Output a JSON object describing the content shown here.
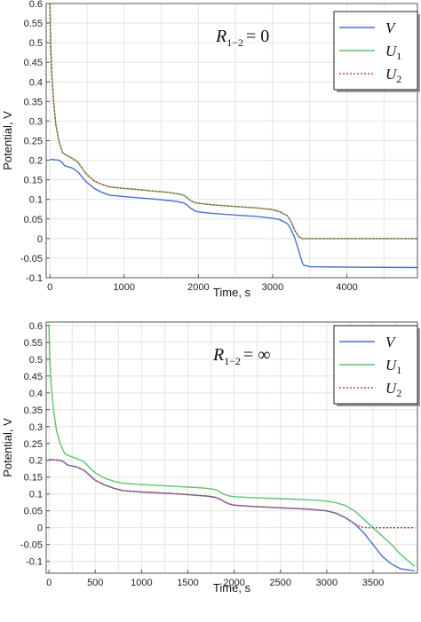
{
  "chart_data": [
    {
      "type": "line",
      "annotation": {
        "symbol": "R",
        "subscript": "1−2",
        "value": "= 0"
      },
      "xlabel": "Time, s",
      "ylabel": "Potential, V",
      "xlim": [
        -50,
        4950
      ],
      "ylim": [
        -0.1,
        0.6
      ],
      "xticks": [
        0,
        1000,
        2000,
        3000,
        4000
      ],
      "yticks": [
        -0.1,
        -0.05,
        0,
        0.05,
        0.1,
        0.15,
        0.2,
        0.25,
        0.3,
        0.35,
        0.4,
        0.45,
        0.5,
        0.55,
        0.6
      ],
      "ytick_labels": [
        "-0.1",
        "-0.05",
        "0",
        "0.05",
        "0.1",
        "0.15",
        "0.2",
        "0.25",
        "0.3",
        "0.35",
        "0.4",
        "0.45",
        "0.5",
        "0.55",
        "0.6"
      ],
      "grid": true,
      "legend_position": "top-right",
      "series": [
        {
          "name": "V",
          "sub": "",
          "color": "#4a6fd6",
          "dash": "solid",
          "x": [
            0,
            20,
            60,
            120,
            160,
            200,
            300,
            380,
            450,
            500,
            600,
            700,
            800,
            1000,
            1200,
            1400,
            1600,
            1700,
            1800,
            1850,
            1900,
            1950,
            2000,
            2200,
            2500,
            2800,
            3000,
            3100,
            3200,
            3250,
            3300,
            3350,
            3400,
            3420,
            3500,
            4000,
            4950
          ],
          "y": [
            0.202,
            0.202,
            0.201,
            0.2,
            0.195,
            0.186,
            0.18,
            0.17,
            0.153,
            0.143,
            0.128,
            0.118,
            0.111,
            0.107,
            0.104,
            0.101,
            0.097,
            0.095,
            0.091,
            0.085,
            0.077,
            0.071,
            0.068,
            0.064,
            0.06,
            0.056,
            0.052,
            0.048,
            0.038,
            0.022,
            0.0,
            -0.03,
            -0.062,
            -0.068,
            -0.072,
            -0.073,
            -0.074
          ]
        },
        {
          "name": "U",
          "sub": "1",
          "color": "#5cc46e",
          "dash": "solid",
          "x": [
            0,
            10,
            25,
            50,
            80,
            120,
            170,
            200,
            300,
            380,
            450,
            500,
            600,
            700,
            800,
            1000,
            1200,
            1400,
            1600,
            1700,
            1800,
            1850,
            1900,
            1950,
            2000,
            2200,
            2500,
            2800,
            3000,
            3100,
            3200,
            3250,
            3300,
            3350,
            3400,
            3420,
            3500,
            4000,
            4950
          ],
          "y": [
            0.6,
            0.5,
            0.42,
            0.35,
            0.29,
            0.25,
            0.22,
            0.215,
            0.205,
            0.195,
            0.175,
            0.163,
            0.147,
            0.138,
            0.132,
            0.128,
            0.125,
            0.121,
            0.118,
            0.115,
            0.111,
            0.104,
            0.096,
            0.092,
            0.09,
            0.086,
            0.082,
            0.078,
            0.074,
            0.068,
            0.058,
            0.042,
            0.02,
            0.005,
            0.0,
            0.0,
            0.0,
            0.0,
            0.0
          ]
        },
        {
          "name": "U",
          "sub": "2",
          "color": "#c0463c",
          "dash": "dotted",
          "x": [
            0,
            10,
            25,
            50,
            80,
            120,
            170,
            200,
            300,
            380,
            450,
            500,
            600,
            700,
            800,
            1000,
            1200,
            1400,
            1600,
            1700,
            1800,
            1850,
            1900,
            1950,
            2000,
            2200,
            2500,
            2800,
            3000,
            3100,
            3200,
            3250,
            3300,
            3350,
            3400,
            3420,
            3500,
            4000,
            4950
          ],
          "y": [
            0.6,
            0.5,
            0.42,
            0.35,
            0.29,
            0.25,
            0.22,
            0.215,
            0.205,
            0.195,
            0.175,
            0.163,
            0.147,
            0.138,
            0.132,
            0.128,
            0.125,
            0.121,
            0.118,
            0.115,
            0.111,
            0.104,
            0.096,
            0.092,
            0.09,
            0.086,
            0.082,
            0.078,
            0.074,
            0.068,
            0.058,
            0.042,
            0.02,
            0.005,
            0.0,
            0.0,
            0.0,
            0.0,
            0.0
          ]
        }
      ]
    },
    {
      "type": "line",
      "annotation": {
        "symbol": "R",
        "subscript": "1−2",
        "value": "= ∞"
      },
      "xlabel": "Time, s",
      "ylabel": "Potential, V",
      "xlim": [
        -30,
        3980
      ],
      "ylim": [
        -0.135,
        0.61
      ],
      "xticks": [
        0,
        500,
        1000,
        1500,
        2000,
        2500,
        3000,
        3500
      ],
      "yticks": [
        -0.1,
        -0.05,
        0,
        0.05,
        0.1,
        0.15,
        0.2,
        0.25,
        0.3,
        0.35,
        0.4,
        0.45,
        0.5,
        0.55,
        0.6
      ],
      "ytick_labels": [
        "-0.1",
        "-0.05",
        "0",
        "0.05",
        "0.1",
        "0.15",
        "0.2",
        "0.25",
        "0.3",
        "0.35",
        "0.4",
        "0.45",
        "0.5",
        "0.55",
        "0.6"
      ],
      "grid": true,
      "legend_position": "top-right",
      "series": [
        {
          "name": "V",
          "sub": "",
          "color": "#4a6fd6",
          "dash": "solid",
          "x": [
            0,
            20,
            60,
            120,
            160,
            200,
            300,
            380,
            450,
            500,
            600,
            700,
            800,
            1000,
            1200,
            1400,
            1600,
            1700,
            1800,
            1850,
            1900,
            1950,
            2000,
            2200,
            2500,
            2800,
            3000,
            3100,
            3200,
            3300,
            3400,
            3500,
            3600,
            3700,
            3800,
            3950
          ],
          "y": [
            0.202,
            0.202,
            0.201,
            0.2,
            0.195,
            0.186,
            0.18,
            0.17,
            0.153,
            0.141,
            0.127,
            0.117,
            0.11,
            0.106,
            0.103,
            0.1,
            0.096,
            0.094,
            0.09,
            0.084,
            0.076,
            0.07,
            0.067,
            0.063,
            0.059,
            0.055,
            0.05,
            0.043,
            0.03,
            0.012,
            -0.015,
            -0.05,
            -0.085,
            -0.108,
            -0.122,
            -0.128
          ]
        },
        {
          "name": "U",
          "sub": "1",
          "color": "#5cc46e",
          "dash": "solid",
          "x": [
            0,
            10,
            25,
            50,
            80,
            120,
            170,
            200,
            300,
            380,
            450,
            500,
            600,
            700,
            800,
            1000,
            1200,
            1400,
            1600,
            1700,
            1800,
            1850,
            1900,
            1950,
            2000,
            2200,
            2500,
            2800,
            3000,
            3100,
            3200,
            3300,
            3400,
            3500,
            3600,
            3700,
            3800,
            3950
          ],
          "y": [
            0.6,
            0.5,
            0.42,
            0.35,
            0.29,
            0.25,
            0.22,
            0.215,
            0.205,
            0.195,
            0.175,
            0.163,
            0.147,
            0.138,
            0.132,
            0.128,
            0.125,
            0.122,
            0.119,
            0.117,
            0.113,
            0.106,
            0.098,
            0.094,
            0.092,
            0.089,
            0.086,
            0.083,
            0.079,
            0.074,
            0.066,
            0.05,
            0.025,
            0.0,
            -0.025,
            -0.05,
            -0.08,
            -0.115
          ]
        },
        {
          "name": "U",
          "sub": "2",
          "color": "#c0463c",
          "dash": "dotted",
          "x": [
            0,
            20,
            60,
            120,
            160,
            200,
            300,
            380,
            450,
            500,
            600,
            700,
            800,
            1000,
            1200,
            1400,
            1600,
            1700,
            1800,
            1850,
            1900,
            1950,
            2000,
            2200,
            2500,
            2800,
            3000,
            3100,
            3200,
            3250,
            3300,
            3350,
            3400,
            3450,
            3500,
            3950
          ],
          "y": [
            0.202,
            0.202,
            0.201,
            0.2,
            0.195,
            0.186,
            0.18,
            0.17,
            0.153,
            0.141,
            0.127,
            0.117,
            0.11,
            0.106,
            0.103,
            0.1,
            0.096,
            0.094,
            0.09,
            0.084,
            0.076,
            0.07,
            0.067,
            0.063,
            0.059,
            0.055,
            0.05,
            0.043,
            0.03,
            0.022,
            0.012,
            0.005,
            0.001,
            0.0,
            0.0,
            0.0
          ]
        }
      ]
    }
  ]
}
